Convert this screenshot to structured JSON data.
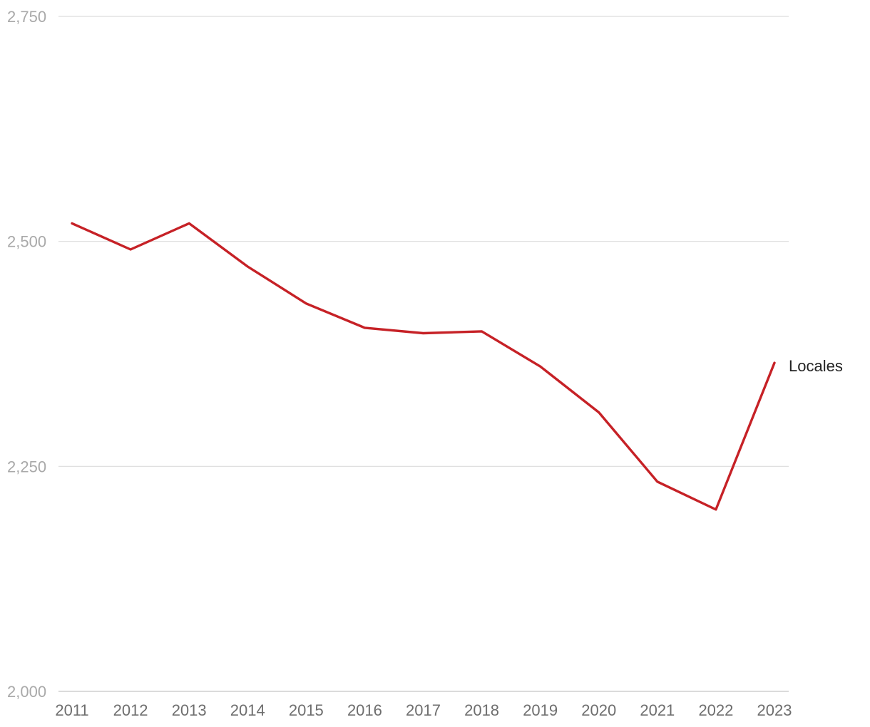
{
  "chart_data": {
    "type": "line",
    "x": [
      "2011",
      "2012",
      "2013",
      "2014",
      "2015",
      "2016",
      "2017",
      "2018",
      "2019",
      "2020",
      "2021",
      "2022",
      "2023"
    ],
    "series": [
      {
        "name": "Locales",
        "values": [
          2520,
          2491,
          2520,
          2472,
          2431,
          2404,
          2398,
          2400,
          2361,
          2310,
          2233,
          2202,
          2365
        ],
        "color": "#c62126"
      }
    ],
    "y_ticks": [
      2000,
      2250,
      2500,
      2750
    ],
    "y_tick_labels": [
      "2,000",
      "2,250",
      "2,500",
      "2,750"
    ],
    "ylim": [
      2000,
      2750
    ],
    "grid": true,
    "legend": "end-of-line label"
  }
}
